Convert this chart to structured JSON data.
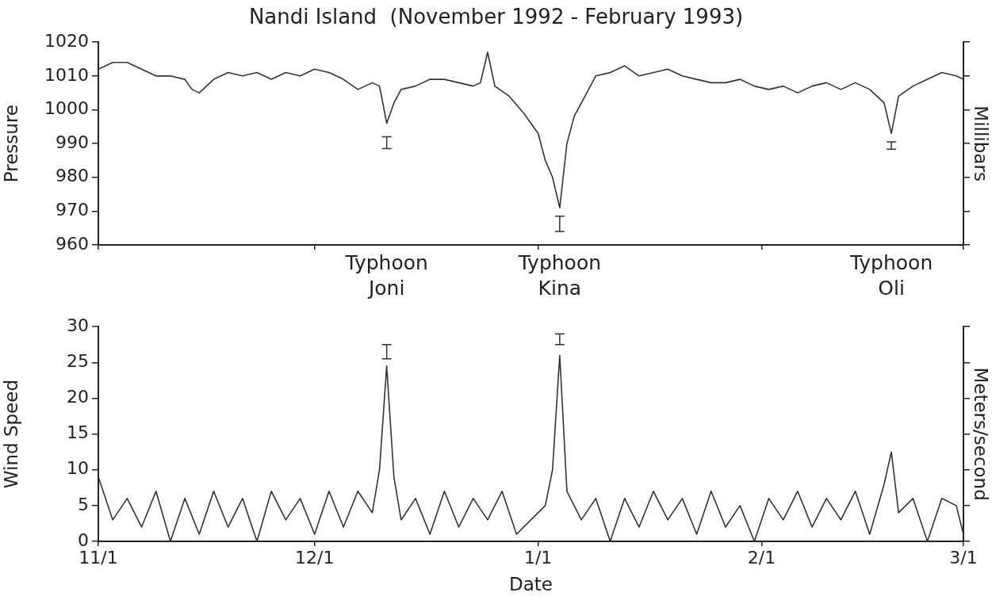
{
  "chart_data": [
    {
      "type": "line",
      "title": "Nandi Island  (November 1992 - February 1993)",
      "ylabel": "Pressure",
      "y2label": "Millibars",
      "xlim": [
        "1992-11-01",
        "1993-03-01"
      ],
      "xticks": [
        {
          "value": "1992-11-01",
          "label": null
        },
        {
          "value": "1992-12-01",
          "label": null
        },
        {
          "value": "1993-01-01",
          "label": null
        },
        {
          "value": "1993-02-01",
          "label": null
        },
        {
          "value": "1993-03-01",
          "label": null
        }
      ],
      "tick_labels": "y",
      "ylim": [
        960,
        1020
      ],
      "yticks": [
        960,
        970,
        980,
        990,
        1000,
        1010,
        1020
      ],
      "grid": false,
      "legend": false,
      "line_style": "solid",
      "annotations": [
        "Typhoon Joni",
        "Typhoon Kina",
        "Typhoon Oli"
      ],
      "series": [
        {
          "color": "#333333",
          "x": [
            "1992-11-01",
            "1992-11-03",
            "1992-11-05",
            "1992-11-07",
            "1992-11-09",
            "1992-11-11",
            "1992-11-13",
            "1992-11-14",
            "1992-11-15",
            "1992-11-17",
            "1992-11-19",
            "1992-11-21",
            "1992-11-23",
            "1992-11-25",
            "1992-11-27",
            "1992-11-29",
            "1992-12-01",
            "1992-12-03",
            "1992-12-05",
            "1992-12-07",
            "1992-12-09",
            "1992-12-10",
            "1992-12-11",
            "1992-12-12",
            "1992-12-13",
            "1992-12-15",
            "1992-12-17",
            "1992-12-19",
            "1992-12-21",
            "1992-12-23",
            "1992-12-24",
            "1992-12-25",
            "1992-12-26",
            "1992-12-28",
            "1992-12-30",
            "1993-01-01",
            "1993-01-02",
            "1993-01-03",
            "1993-01-04",
            "1993-01-05",
            "1993-01-06",
            "1993-01-07",
            "1993-01-09",
            "1993-01-11",
            "1993-01-13",
            "1993-01-15",
            "1993-01-17",
            "1993-01-19",
            "1993-01-21",
            "1993-01-23",
            "1993-01-25",
            "1993-01-27",
            "1993-01-29",
            "1993-01-31",
            "1993-02-02",
            "1993-02-04",
            "1993-02-06",
            "1993-02-08",
            "1993-02-10",
            "1993-02-12",
            "1993-02-14",
            "1993-02-16",
            "1993-02-18",
            "1993-02-19",
            "1993-02-20",
            "1993-02-22",
            "1993-02-24",
            "1993-02-26",
            "1993-02-28",
            "1993-03-01"
          ],
          "values": [
            1012,
            1014,
            1014,
            1012,
            1010,
            1010,
            1009,
            1006,
            1005,
            1009,
            1011,
            1010,
            1011,
            1009,
            1011,
            1010,
            1012,
            1011,
            1009,
            1006,
            1008,
            1007,
            996,
            1002,
            1006,
            1007,
            1009,
            1009,
            1008,
            1007,
            1008,
            1017,
            1007,
            1004,
            999,
            993,
            985,
            980,
            971,
            990,
            998,
            1002,
            1010,
            1011,
            1013,
            1010,
            1011,
            1012,
            1010,
            1009,
            1008,
            1008,
            1009,
            1007,
            1006,
            1007,
            1005,
            1007,
            1008,
            1006,
            1008,
            1006,
            1002,
            993,
            1004,
            1007,
            1009,
            1011,
            1010,
            1009
          ]
        },
        {
          "type": "scatter",
          "color": "#333333",
          "x": [
            "1992-12-11",
            "1993-01-04",
            "1993-02-19"
          ],
          "values": [
            990.3,
            966.3,
            989.4
          ],
          "errors": [
            [
              988.5,
              992
            ],
            [
              964,
              968.5
            ],
            [
              988.3,
              990.5
            ]
          ]
        }
      ]
    },
    {
      "type": "line",
      "xlabel": "Date",
      "ylabel": "Wind Speed",
      "y2label": "Meters/second",
      "xlim": [
        "1992-11-01",
        "1993-03-01"
      ],
      "xticks": [
        {
          "value": "1992-11-01",
          "label": "11/1"
        },
        {
          "value": "1992-12-01",
          "label": "12/1"
        },
        {
          "value": "1993-01-01",
          "label": "1/1"
        },
        {
          "value": "1993-02-01",
          "label": "2/1"
        },
        {
          "value": "1993-03-01",
          "label": "3/1"
        }
      ],
      "ylim": [
        0,
        30
      ],
      "yticks": [
        0,
        5,
        10,
        15,
        20,
        25,
        30
      ],
      "grid": false,
      "legend": false,
      "line_style": "solid",
      "series": [
        {
          "color": "#333333",
          "x": [
            "1992-11-01",
            "1992-11-03",
            "1992-11-05",
            "1992-11-07",
            "1992-11-09",
            "1992-11-11",
            "1992-11-13",
            "1992-11-15",
            "1992-11-17",
            "1992-11-19",
            "1992-11-21",
            "1992-11-23",
            "1992-11-25",
            "1992-11-27",
            "1992-11-29",
            "1992-12-01",
            "1992-12-03",
            "1992-12-05",
            "1992-12-07",
            "1992-12-09",
            "1992-12-10",
            "1992-12-11",
            "1992-12-12",
            "1992-12-13",
            "1992-12-15",
            "1992-12-17",
            "1992-12-19",
            "1992-12-21",
            "1992-12-23",
            "1992-12-25",
            "1992-12-27",
            "1992-12-29",
            "1992-12-31",
            "1993-01-02",
            "1993-01-03",
            "1993-01-04",
            "1993-01-05",
            "1993-01-07",
            "1993-01-09",
            "1993-01-11",
            "1993-01-13",
            "1993-01-15",
            "1993-01-17",
            "1993-01-19",
            "1993-01-21",
            "1993-01-23",
            "1993-01-25",
            "1993-01-27",
            "1993-01-29",
            "1993-01-31",
            "1993-02-02",
            "1993-02-04",
            "1993-02-06",
            "1993-02-08",
            "1993-02-10",
            "1993-02-12",
            "1993-02-14",
            "1993-02-16",
            "1993-02-18",
            "1993-02-19",
            "1993-02-20",
            "1993-02-22",
            "1993-02-24",
            "1993-02-26",
            "1993-02-28",
            "1993-03-01"
          ],
          "values": [
            9,
            3,
            6,
            2,
            7,
            0,
            6,
            1,
            7,
            2,
            6,
            0,
            7,
            3,
            6,
            1,
            7,
            2,
            7,
            4,
            10,
            24.5,
            9,
            3,
            6,
            1,
            7,
            2,
            6,
            3,
            7,
            1,
            3,
            5,
            10,
            26,
            7,
            3,
            6,
            0,
            6,
            2,
            7,
            3,
            6,
            1,
            7,
            2,
            5,
            0,
            6,
            3,
            7,
            2,
            6,
            3,
            7,
            1,
            8,
            12.5,
            4,
            6,
            0,
            6,
            5,
            1
          ]
        },
        {
          "type": "scatter",
          "color": "#333333",
          "x": [
            "1992-12-11",
            "1993-01-04"
          ],
          "values": [
            26.5,
            28.3
          ],
          "errors": [
            [
              25.5,
              27.5
            ],
            [
              27.5,
              29
            ]
          ]
        }
      ]
    }
  ]
}
